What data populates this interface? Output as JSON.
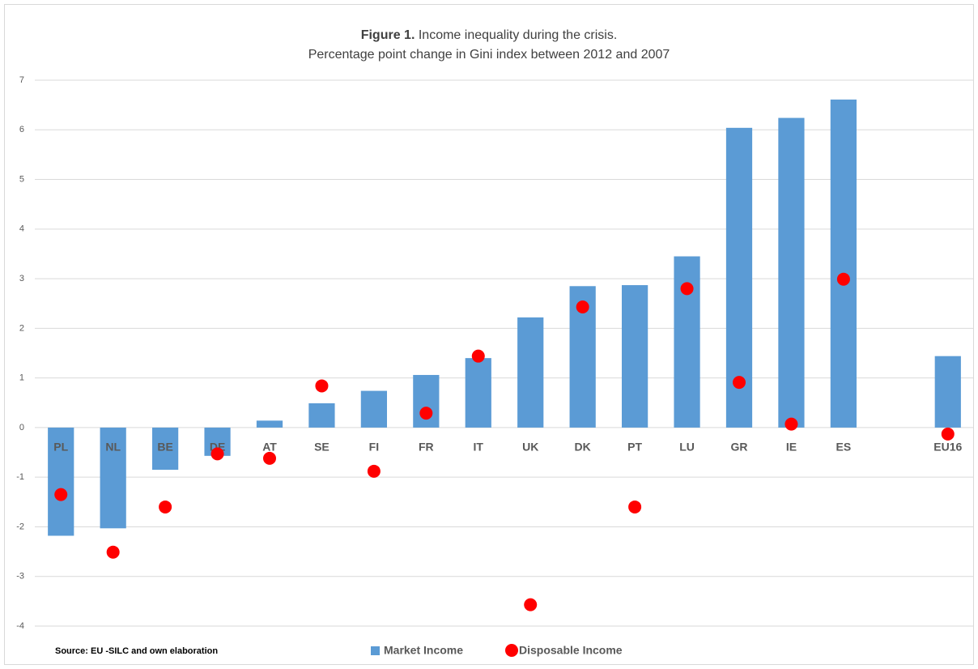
{
  "chart_data": {
    "type": "bar",
    "title_label": "Figure 1.",
    "title": "Income inequality during the crisis.",
    "subtitle": "Percentage point change in Gini index between 2012 and 2007",
    "source": "Source: EU -SILC and own elaboration",
    "categories": [
      "PL",
      "NL",
      "BE",
      "DE",
      "AT",
      "SE",
      "FI",
      "FR",
      "IT",
      "UK",
      "DK",
      "PT",
      "LU",
      "GR",
      "IE",
      "ES",
      null,
      "EU16"
    ],
    "series": [
      {
        "name": "Market Income",
        "type": "bar",
        "color": "#5b9bd5",
        "values": [
          -2.18,
          -2.03,
          -0.85,
          -0.57,
          0.14,
          0.49,
          0.74,
          1.06,
          1.4,
          2.22,
          2.85,
          2.87,
          3.45,
          6.04,
          6.24,
          6.61,
          null,
          1.44
        ]
      },
      {
        "name": "Disposable Income",
        "type": "scatter",
        "color": "#ff0000",
        "values": [
          -1.35,
          -2.51,
          -1.6,
          -0.53,
          -0.62,
          0.84,
          -0.88,
          0.29,
          1.44,
          -3.57,
          2.43,
          -1.6,
          2.8,
          0.91,
          0.07,
          2.99,
          null,
          -0.13
        ]
      }
    ],
    "ylim": [
      -4,
      7
    ],
    "yticks": [
      -4,
      -3,
      -2,
      -1,
      0,
      1,
      2,
      3,
      4,
      5,
      6,
      7
    ],
    "grid": true,
    "legend": "bottom"
  }
}
